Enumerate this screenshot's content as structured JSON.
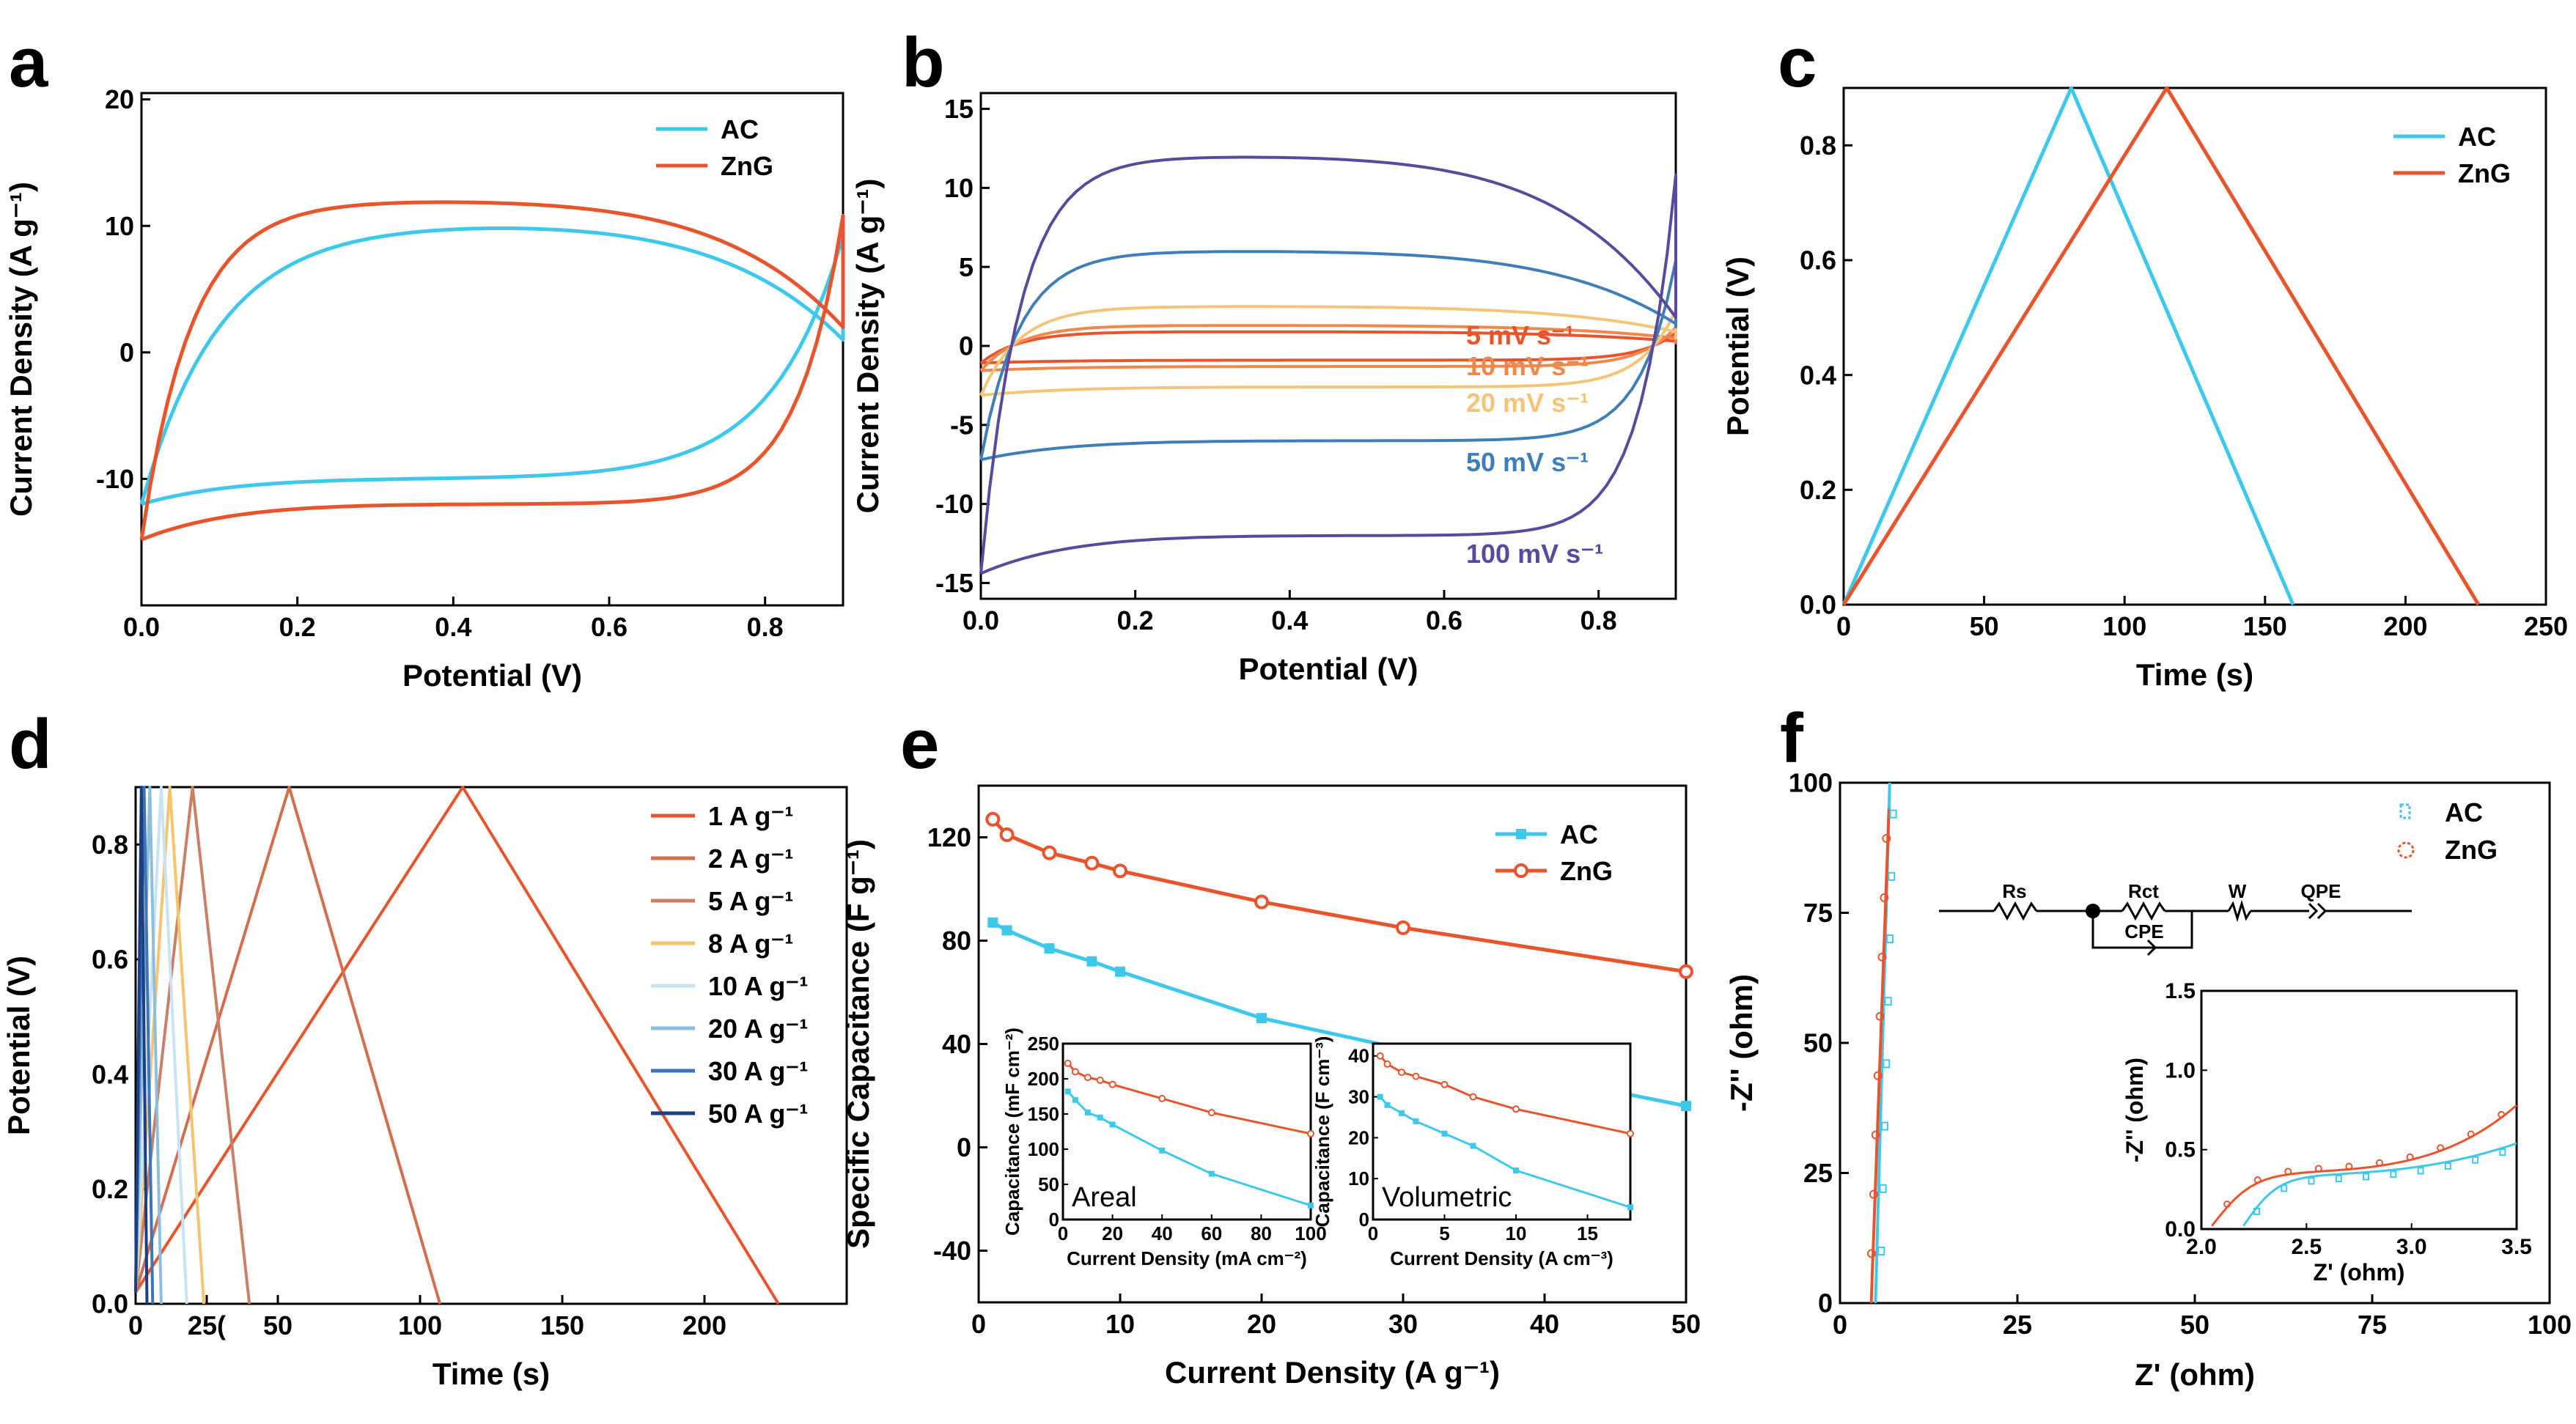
{
  "colors": {
    "ac": "#3ec8ec",
    "zng": "#e8552c",
    "s5": "#e8552c",
    "s10": "#f0884c",
    "s20": "#f5c478",
    "s50": "#3f7fb9",
    "s100": "#584a9c",
    "r1": "#e8552c",
    "r2": "#d07050",
    "r5": "#c98066",
    "r8": "#f5c470",
    "r10": "#c8e3f3",
    "r20": "#8dbfdc",
    "r30": "#3f75b5",
    "r50": "#1c3e85"
  },
  "chart_data": [
    {
      "id": "a",
      "panel_label": "a",
      "type": "line",
      "xlabel": "Potential (V)",
      "ylabel": "Current Density (A g⁻¹)",
      "xlim": [
        0,
        0.9
      ],
      "ylim": [
        -20,
        20.5
      ],
      "xticks": [
        "0.0",
        "0.2",
        "0.4",
        "0.6",
        "0.8"
      ],
      "yticks": [
        "20",
        "10",
        "0",
        "-10"
      ],
      "legend": [
        "AC",
        "ZnG"
      ],
      "series": [
        {
          "name": "AC",
          "x": [
            0,
            0.9
          ],
          "upper": 10.2,
          "lower": -10
        },
        {
          "name": "ZnG",
          "x": [
            0,
            0.9
          ],
          "upper": 12,
          "lower": -12
        }
      ]
    },
    {
      "id": "b",
      "panel_label": "b",
      "type": "line",
      "xlabel": "Potential (V)",
      "ylabel": "Current Density (A g⁻¹)",
      "xlim": [
        0,
        0.9
      ],
      "ylim": [
        -16,
        16
      ],
      "xticks": [
        "0.0",
        "0.2",
        "0.4",
        "0.6",
        "0.8"
      ],
      "yticks": [
        "15",
        "10",
        "5",
        "0",
        "-5",
        "-10",
        "-15"
      ],
      "annotations": [
        "5 mV s⁻¹",
        "10 mV s⁻¹",
        "20 mV s⁻¹",
        "50 mV s⁻¹",
        "100 mV s⁻¹"
      ],
      "series": [
        {
          "name": "5 mV s⁻¹",
          "upper": 0.9,
          "lower": -0.9
        },
        {
          "name": "10 mV s⁻¹",
          "upper": 1.3,
          "lower": -1.3
        },
        {
          "name": "20 mV s⁻¹",
          "upper": 2.5,
          "lower": -2.6
        },
        {
          "name": "50 mV s⁻¹",
          "upper": 6,
          "lower": -6
        },
        {
          "name": "100 mV s⁻¹",
          "upper": 12,
          "lower": -12
        }
      ]
    },
    {
      "id": "c",
      "panel_label": "c",
      "type": "line",
      "xlabel": "Time (s)",
      "ylabel": "Potential (V)",
      "xlim": [
        0,
        250
      ],
      "ylim": [
        0,
        0.9
      ],
      "xticks": [
        "0",
        "50",
        "100",
        "150",
        "200",
        "250"
      ],
      "yticks": [
        "0.0",
        "0.2",
        "0.4",
        "0.6",
        "0.8"
      ],
      "legend": [
        "AC",
        "ZnG"
      ],
      "series": [
        {
          "name": "AC",
          "x": [
            0,
            81,
            160
          ],
          "y": [
            0,
            0.9,
            0
          ]
        },
        {
          "name": "ZnG",
          "x": [
            0,
            115,
            226
          ],
          "y": [
            0,
            0.9,
            0
          ]
        }
      ]
    },
    {
      "id": "d",
      "panel_label": "d",
      "type": "line",
      "xlabel": "Time (s)",
      "ylabel": "Potential (V)",
      "xlim": [
        0,
        250
      ],
      "ylim": [
        0,
        0.9
      ],
      "xticks": [
        "0",
        "50",
        "100",
        "150",
        "200",
        "25("
      ],
      "yticks": [
        "0.0",
        "0.2",
        "0.4",
        "0.6",
        "0.8"
      ],
      "legend": [
        "1 A g⁻¹",
        "2 A g⁻¹",
        "5 A g⁻¹",
        "8 A g⁻¹",
        "10 A g⁻¹",
        "20 A g⁻¹",
        "30 A g⁻¹",
        "50 A g⁻¹"
      ],
      "series": [
        {
          "name": "1 A g⁻¹",
          "x": [
            0,
            115,
            226
          ]
        },
        {
          "name": "2 A g⁻¹",
          "x": [
            0,
            54,
            107
          ]
        },
        {
          "name": "5 A g⁻¹",
          "x": [
            0,
            20,
            40
          ]
        },
        {
          "name": "8 A g⁻¹",
          "x": [
            0,
            12,
            24
          ]
        },
        {
          "name": "10 A g⁻¹",
          "x": [
            0,
            9,
            18
          ]
        },
        {
          "name": "20 A g⁻¹",
          "x": [
            0,
            5,
            9
          ]
        },
        {
          "name": "30 A g⁻¹",
          "x": [
            0,
            3,
            6
          ]
        },
        {
          "name": "50 A g⁻¹",
          "x": [
            0,
            2,
            4
          ]
        }
      ]
    },
    {
      "id": "e",
      "panel_label": "e",
      "type": "line",
      "xlabel": "Current Density (A g⁻¹)",
      "ylabel": "Specific Capacitance (F g⁻¹)",
      "xlim": [
        0,
        50
      ],
      "ylim": [
        -60,
        140
      ],
      "xticks": [
        "0",
        "10",
        "20",
        "30",
        "40",
        "50"
      ],
      "yticks": [
        "120",
        "80",
        "40",
        "0",
        "-40"
      ],
      "legend": [
        "AC",
        "ZnG"
      ],
      "series": [
        {
          "name": "AC",
          "x": [
            1,
            2,
            5,
            8,
            10,
            20,
            30,
            50
          ],
          "y": [
            87,
            84,
            77,
            72,
            68,
            50,
            38,
            16
          ]
        },
        {
          "name": "ZnG",
          "x": [
            1,
            2,
            5,
            8,
            10,
            20,
            30,
            50
          ],
          "y": [
            127,
            121,
            114,
            110,
            107,
            95,
            85,
            68
          ]
        }
      ],
      "inset_areal": {
        "label": "Areal",
        "xlabel": "Current Density (mA cm⁻²)",
        "ylabel": "Capacitance (mF cm⁻²)",
        "xticks": [
          "0",
          "20",
          "40",
          "60",
          "80",
          "100"
        ],
        "yticks": [
          "250",
          "200",
          "150",
          "100",
          "50",
          "0"
        ],
        "xlim": [
          0,
          100
        ],
        "ylim": [
          0,
          250
        ],
        "ac": {
          "x": [
            2,
            5,
            10,
            15,
            20,
            40,
            60,
            100
          ],
          "y": [
            182,
            170,
            152,
            145,
            135,
            98,
            65,
            20
          ]
        },
        "zng": {
          "x": [
            2,
            5,
            10,
            15,
            20,
            40,
            60,
            100
          ],
          "y": [
            222,
            210,
            202,
            198,
            192,
            172,
            152,
            122
          ]
        }
      },
      "inset_volumetric": {
        "label": "Volumetric",
        "xlabel": "Current Density (A cm⁻³)",
        "ylabel": "Capacitance (F cm⁻³)",
        "xticks": [
          "0",
          "5",
          "10",
          "15"
        ],
        "yticks": [
          "40",
          "30",
          "20",
          "10",
          "0"
        ],
        "xlim": [
          0,
          18
        ],
        "ylim": [
          0,
          43
        ],
        "ac": {
          "x": [
            0.5,
            1,
            2,
            3,
            5,
            7,
            10,
            18
          ],
          "y": [
            30,
            28,
            26,
            24,
            21,
            18,
            12,
            3
          ]
        },
        "zng": {
          "x": [
            0.5,
            1,
            2,
            3,
            5,
            7,
            10,
            18
          ],
          "y": [
            40,
            38,
            36,
            35,
            33,
            30,
            27,
            21
          ]
        }
      }
    },
    {
      "id": "f",
      "panel_label": "f",
      "type": "scatter",
      "xlabel": "Z' (ohm)",
      "ylabel": "-Z'' (ohm)",
      "xlim": [
        0,
        100
      ],
      "ylim": [
        0,
        100
      ],
      "xticks": [
        "0",
        "25",
        "50",
        "75",
        "100"
      ],
      "yticks": [
        "100",
        "75",
        "50",
        "25",
        "0"
      ],
      "legend": [
        "AC",
        "ZnG"
      ],
      "circuit_labels": [
        "Rs",
        "Rct",
        "W",
        "QPE",
        "CPE"
      ],
      "inset": {
        "xlabel": "Z' (ohm)",
        "ylabel": "-Z'' (ohm)",
        "xticks": [
          "2.0",
          "2.5",
          "3.0",
          "3.5"
        ],
        "yticks": [
          "1.5",
          "1.0",
          "0.5",
          "0.0"
        ],
        "xlim": [
          2,
          3.5
        ],
        "ylim": [
          0,
          1.5
        ]
      }
    }
  ]
}
